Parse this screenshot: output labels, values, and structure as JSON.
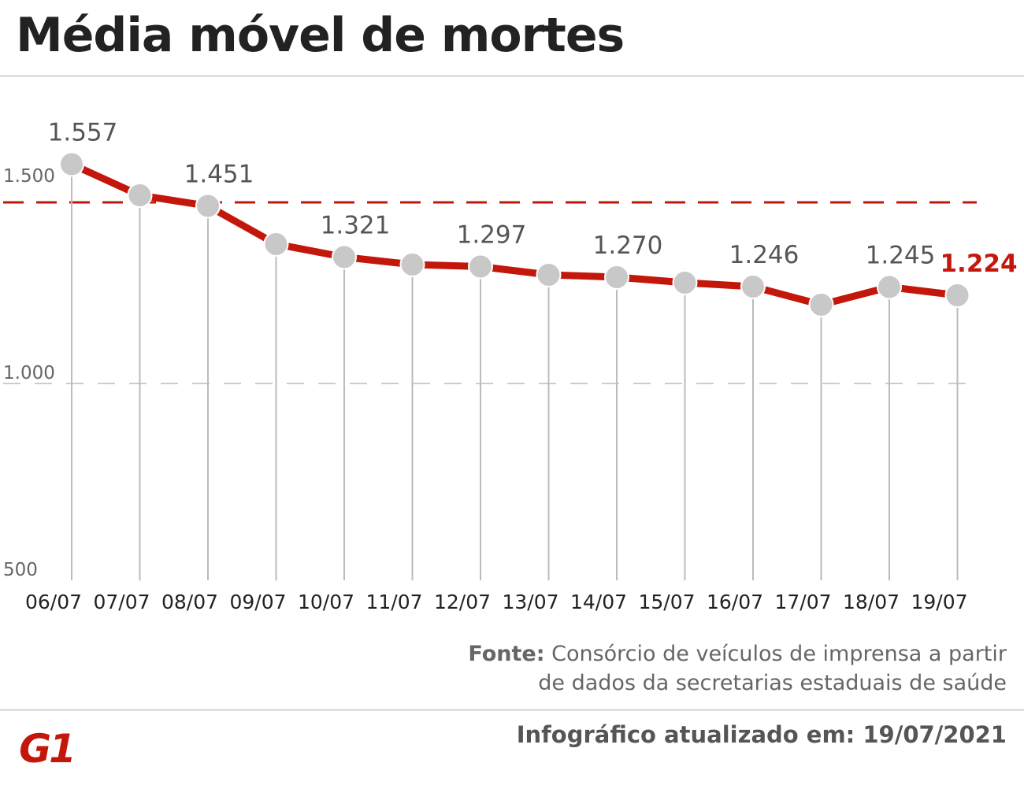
{
  "title": "Média móvel de mortes",
  "source_label": "Fonte:",
  "source_line1": "Consórcio de veículos de imprensa a partir",
  "source_line2": "de dados da secretarias estaduais de saúde",
  "updated": "Infográfico atualizado em: 19/07/2021",
  "logo_text": "G1",
  "colors": {
    "accent": "#c4170c",
    "line_red": "#c4170c",
    "point_gray": "#c8c8c8",
    "label_gray": "#555555",
    "grid_gray": "#cccccc"
  },
  "chart_data": {
    "type": "line",
    "categories": [
      "06/07",
      "07/07",
      "08/07",
      "09/07",
      "10/07",
      "11/07",
      "12/07",
      "13/07",
      "14/07",
      "15/07",
      "16/07",
      "17/07",
      "18/07",
      "19/07"
    ],
    "values": [
      1557,
      1478,
      1451,
      1354,
      1321,
      1302,
      1297,
      1276,
      1270,
      1256,
      1246,
      1200,
      1245,
      1224
    ],
    "data_labels": [
      "1.557",
      "",
      "1.451",
      "",
      "1.321",
      "",
      "1.297",
      "",
      "1.270",
      "",
      "1.246",
      "",
      "1.245",
      "1.224"
    ],
    "highlight_last": true,
    "y_ticks": [
      {
        "value": 500,
        "label": "500"
      },
      {
        "value": 1000,
        "label": "1.000"
      },
      {
        "value": 1500,
        "label": "1.500"
      }
    ],
    "reference_line": 1460,
    "ylim": [
      500,
      1500
    ],
    "grid": true
  }
}
